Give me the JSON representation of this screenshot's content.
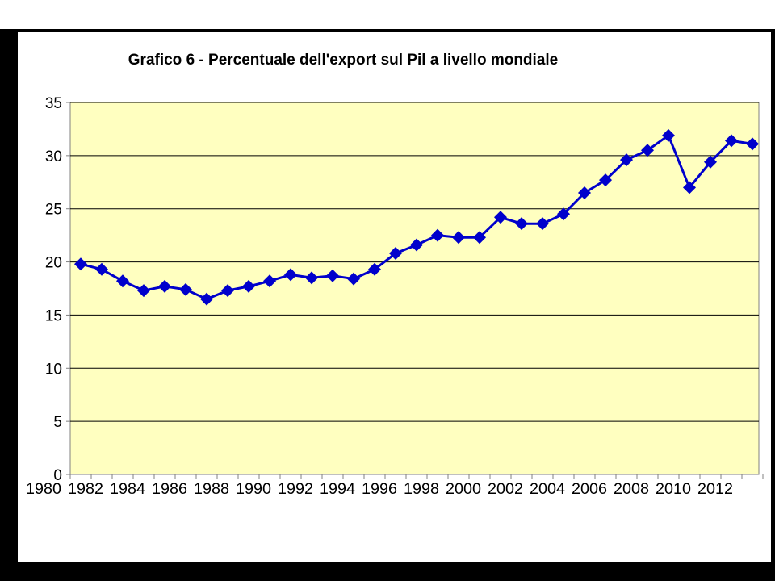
{
  "chart_data": {
    "type": "line",
    "title": "Grafico 6  - Percentuale dell'export sul Pil  a livello mondiale",
    "xlabel": "",
    "ylabel": "",
    "ylim": [
      0,
      35
    ],
    "yticks": [
      "0",
      "5",
      "10",
      "15",
      "20",
      "25",
      "30",
      "35"
    ],
    "xtick_labels": [
      "1980",
      "1982",
      "1984",
      "1986",
      "1988",
      "1990",
      "1992",
      "1994",
      "1996",
      "1998",
      "2000",
      "2002",
      "2004",
      "2006",
      "2008",
      "2010",
      "2012"
    ],
    "grid": "horizontal",
    "plot_background": "#FFFFC0",
    "series": [
      {
        "color": "#0000CC",
        "marker": "diamond",
        "x": [
          1981,
          1982,
          1983,
          1984,
          1985,
          1986,
          1987,
          1988,
          1989,
          1990,
          1991,
          1992,
          1993,
          1994,
          1995,
          1996,
          1997,
          1998,
          1999,
          2000,
          2001,
          2002,
          2003,
          2004,
          2005,
          2006,
          2007,
          2008,
          2009,
          2010,
          2011,
          2012,
          2013
        ],
        "values": [
          19.8,
          19.3,
          18.2,
          17.3,
          17.7,
          17.4,
          16.5,
          17.3,
          17.7,
          18.2,
          18.8,
          18.5,
          18.7,
          18.4,
          19.3,
          20.8,
          21.6,
          22.5,
          22.3,
          22.3,
          24.2,
          23.6,
          23.6,
          24.5,
          26.5,
          27.7,
          29.6,
          30.5,
          31.9,
          27.0,
          29.4,
          31.4,
          31.1
        ]
      }
    ]
  }
}
